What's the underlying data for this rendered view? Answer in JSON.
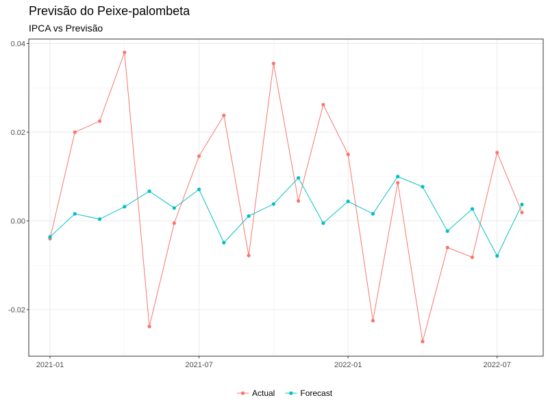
{
  "chart_data": {
    "type": "line",
    "title": "Previsão do Peixe-palombeta",
    "subtitle": "IPCA vs Previsão",
    "xlabel": "",
    "ylabel": "",
    "x": [
      "2021-01",
      "2021-02",
      "2021-03",
      "2021-04",
      "2021-05",
      "2021-06",
      "2021-07",
      "2021-08",
      "2021-09",
      "2021-10",
      "2021-11",
      "2021-12",
      "2022-01",
      "2022-02",
      "2022-03",
      "2022-04",
      "2022-05",
      "2022-06",
      "2022-07",
      "2022-08"
    ],
    "x_ticks": [
      "2021-01",
      "2021-07",
      "2022-01",
      "2022-07"
    ],
    "y_ticks": [
      -0.02,
      0.0,
      0.02,
      0.04
    ],
    "y_tick_labels": [
      "-0.02",
      "0.00",
      "0.02",
      "0.04"
    ],
    "ylim": [
      -0.0305,
      0.041
    ],
    "grid": true,
    "legend_position": "bottom",
    "series": [
      {
        "name": "Actual",
        "color": "#F8766D",
        "values": [
          -0.004,
          0.02,
          0.0225,
          0.038,
          -0.0238,
          -0.0005,
          0.0146,
          0.0238,
          -0.0078,
          0.0355,
          0.0045,
          0.0262,
          0.015,
          -0.0225,
          0.0086,
          -0.0272,
          -0.006,
          -0.0082,
          0.0154,
          0.0019
        ]
      },
      {
        "name": "Forecast",
        "color": "#00BFC4",
        "values": [
          -0.0036,
          0.0016,
          0.0004,
          0.0032,
          0.0067,
          0.0029,
          0.0071,
          -0.0049,
          0.0011,
          0.0038,
          0.0097,
          -0.0005,
          0.0044,
          0.0016,
          0.01,
          0.0077,
          -0.0023,
          0.0027,
          -0.0079,
          0.0037
        ]
      }
    ]
  }
}
